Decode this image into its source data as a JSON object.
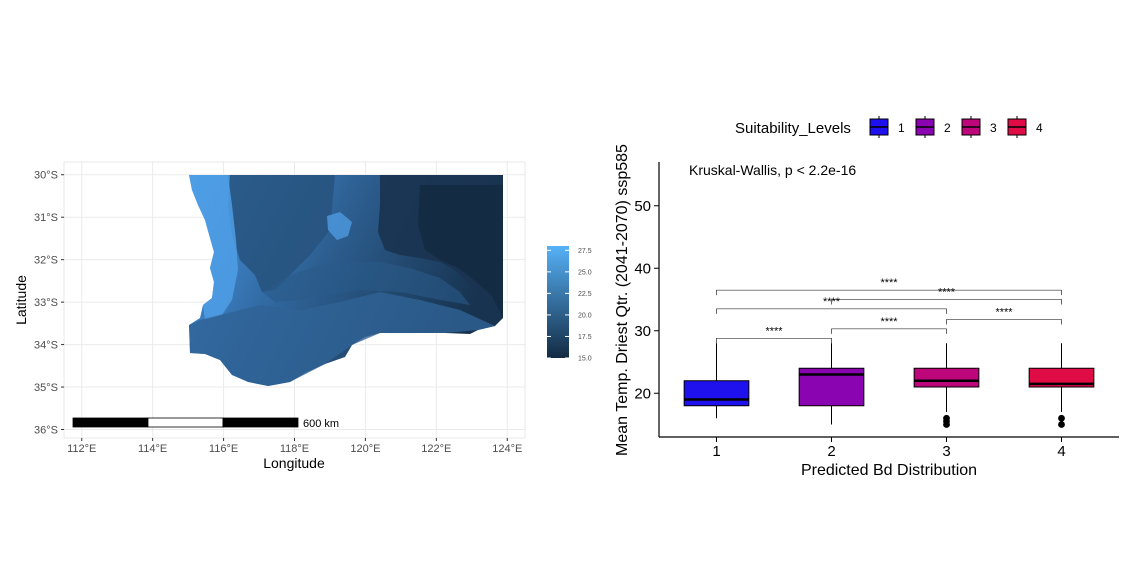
{
  "map": {
    "xlabel": "Longitude",
    "ylabel": "Latitude",
    "lon_ticks": [
      "112°E",
      "114°E",
      "116°E",
      "118°E",
      "120°E",
      "122°E",
      "124°E"
    ],
    "lat_ticks": [
      "30°S",
      "31°S",
      "32°S",
      "33°S",
      "34°S",
      "35°S",
      "36°S"
    ],
    "colorbar_ticks": [
      "27.5",
      "25.0",
      "22.5",
      "20.0",
      "17.5",
      "15.0"
    ],
    "scalebar_label": "600 km",
    "colors": {
      "low": "#132b43",
      "high": "#56b1f7",
      "panel_bg": "#ffffff",
      "grid": "#ebebeb"
    }
  },
  "chart_data": [
    {
      "type": "map",
      "xlabel": "Longitude",
      "ylabel": "Latitude",
      "xlim": [
        111.5,
        124.5
      ],
      "ylim": [
        -36.2,
        -29.7
      ],
      "color_scale": {
        "range": [
          15.0,
          28.0
        ],
        "ticks": [
          27.5,
          25.0,
          22.5,
          20.0,
          17.5,
          15.0
        ]
      }
    },
    {
      "type": "box",
      "xlabel": "Predicted Bd Distribution",
      "ylabel": "Mean Temp. Driest Qtr. (2041-2070) ssp585",
      "categories": [
        "1",
        "2",
        "3",
        "4"
      ],
      "ylim": [
        13,
        57
      ],
      "yticks": [
        20,
        30,
        40,
        50
      ],
      "legend_title": "Suitability_Levels",
      "legend_position": "top",
      "annotation": "Kruskal-Wallis, p < 2.2e-16",
      "series": [
        {
          "name": "1",
          "color": "#1f10ee",
          "whisker_low": 16.0,
          "q1": 18.0,
          "median": 19.0,
          "q3": 22.0,
          "whisker_high": 28.0,
          "outliers": []
        },
        {
          "name": "2",
          "color": "#8b04b2",
          "whisker_low": 15.0,
          "q1": 18.0,
          "median": 23.0,
          "q3": 24.0,
          "whisker_high": 28.0,
          "outliers": []
        },
        {
          "name": "3",
          "color": "#bc0679",
          "whisker_low": 17.0,
          "q1": 21.0,
          "median": 22.0,
          "q3": 24.0,
          "whisker_high": 28.0,
          "outliers": [
            16.0,
            15.5,
            15.0
          ]
        },
        {
          "name": "4",
          "color": "#e00c46",
          "whisker_low": 17.0,
          "q1": 21.0,
          "median": 21.5,
          "q3": 24.0,
          "whisker_high": 28.0,
          "outliers": [
            16.0,
            15.0
          ]
        }
      ],
      "comparisons": [
        {
          "from": 1,
          "to": 2,
          "y": 28.8,
          "label": "****"
        },
        {
          "from": 2,
          "to": 3,
          "y": 30.3,
          "label": "****"
        },
        {
          "from": 3,
          "to": 4,
          "y": 31.8,
          "label": "****"
        },
        {
          "from": 1,
          "to": 3,
          "y": 33.5,
          "label": "****"
        },
        {
          "from": 1,
          "to": 4,
          "y": 36.5,
          "label": "****"
        },
        {
          "from": 2,
          "to": 4,
          "y": 35.0,
          "label": "****"
        }
      ]
    }
  ]
}
